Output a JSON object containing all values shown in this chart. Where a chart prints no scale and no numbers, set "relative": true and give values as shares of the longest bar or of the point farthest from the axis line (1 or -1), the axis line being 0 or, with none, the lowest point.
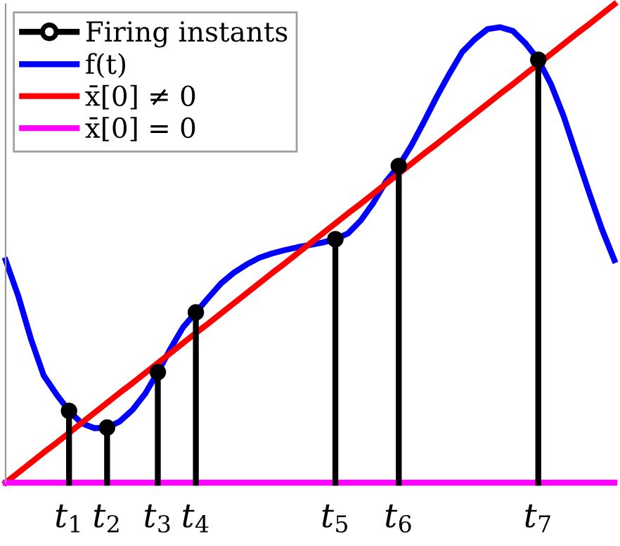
{
  "chart_data": {
    "type": "line",
    "relative": true,
    "grid": false,
    "legend": "top left",
    "categories": [
      null,
      null,
      null,
      null,
      null,
      "t$_{1}$",
      null,
      null,
      "t$_{2}$",
      null,
      null,
      null,
      "t$_{3}$",
      null,
      null,
      "t$_{4}$",
      null,
      null,
      null,
      null,
      null,
      null,
      null,
      null,
      null,
      null,
      "t$_{5}$",
      null,
      null,
      null,
      null,
      "t$_{6}$",
      null,
      null,
      null,
      null,
      null,
      null,
      null,
      null,
      null,
      null,
      "t$_{7}$",
      null,
      null,
      null,
      null,
      null,
      null
    ],
    "series": [
      {
        "name": "Firing instants",
        "type": "lollipop",
        "color": "#000000",
        "marker": "circle",
        "values": [
          null,
          null,
          null,
          null,
          null,
          0.15,
          null,
          null,
          0.115,
          null,
          null,
          null,
          0.231,
          null,
          null,
          0.356,
          null,
          null,
          null,
          null,
          null,
          null,
          null,
          null,
          null,
          null,
          0.509,
          null,
          null,
          null,
          null,
          0.662,
          null,
          null,
          null,
          null,
          null,
          null,
          null,
          null,
          null,
          null,
          0.884,
          null,
          null,
          null,
          null,
          null,
          null
        ]
      },
      {
        "name": "f(t)",
        "color": "#0000ff",
        "values": [
          0.465,
          0.39,
          0.3,
          0.224,
          0.185,
          0.15,
          0.124,
          0.114,
          0.115,
          0.128,
          0.152,
          0.186,
          0.231,
          0.28,
          0.325,
          0.356,
          0.387,
          0.417,
          0.439,
          0.456,
          0.47,
          0.479,
          0.486,
          0.492,
          0.497,
          0.502,
          0.509,
          0.521,
          0.548,
          0.585,
          0.63,
          0.662,
          0.705,
          0.755,
          0.807,
          0.855,
          0.9,
          0.927,
          0.948,
          0.952,
          0.944,
          0.918,
          0.884,
          0.833,
          0.766,
          0.686,
          0.607,
          0.531,
          0.465
        ]
      },
      {
        "name": "x̄[0] ≠ 0",
        "color": "#ff0000",
        "values": [
          0,
          0.021,
          0.042,
          0.063,
          0.083,
          0.104,
          0.125,
          0.146,
          0.167,
          0.188,
          0.208,
          0.229,
          0.25,
          0.271,
          0.292,
          0.313,
          0.333,
          0.354,
          0.375,
          0.396,
          0.417,
          0.438,
          0.458,
          0.479,
          0.5,
          0.521,
          0.542,
          0.563,
          0.583,
          0.604,
          0.625,
          0.646,
          0.667,
          0.688,
          0.708,
          0.729,
          0.75,
          0.771,
          0.792,
          0.813,
          0.833,
          0.854,
          0.875,
          0.896,
          0.917,
          0.938,
          0.958,
          0.979,
          1
        ]
      },
      {
        "name": "x̄[0] = 0",
        "color": "#ff00ff",
        "values": [
          0,
          0,
          0,
          0,
          0,
          0,
          0,
          0,
          0,
          0,
          0,
          0,
          0,
          0,
          0,
          0,
          0,
          0,
          0,
          0,
          0,
          0,
          0,
          0,
          0,
          0,
          0,
          0,
          0,
          0,
          0,
          0,
          0,
          0,
          0,
          0,
          0,
          0,
          0,
          0,
          0,
          0,
          0,
          0,
          0,
          0,
          0,
          0,
          0
        ]
      }
    ]
  }
}
